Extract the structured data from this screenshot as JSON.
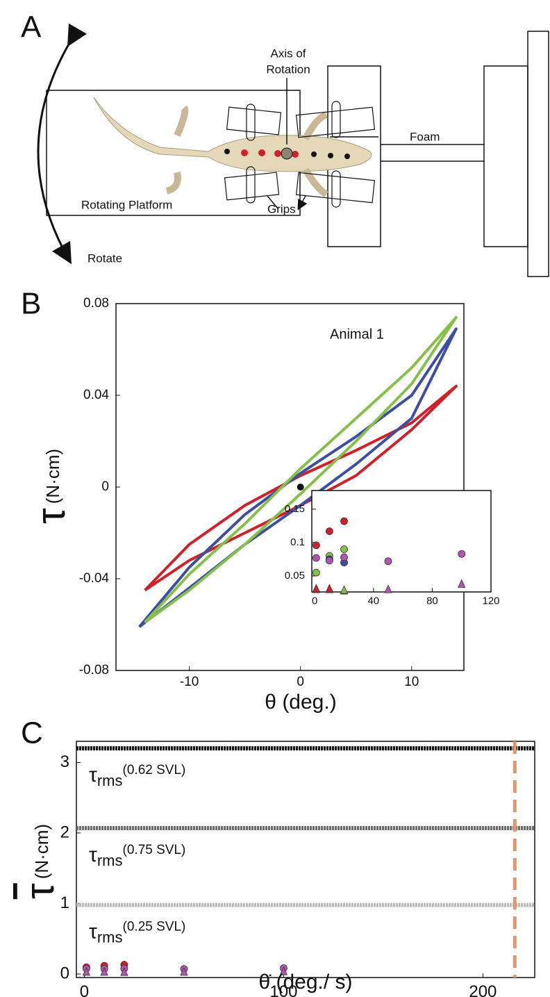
{
  "diagram": {
    "panel_label": "A",
    "labels": {
      "axis_line1": "Axis of",
      "axis_line2": "Rotation",
      "foam": "Foam",
      "platform": "Rotating Platform",
      "grips": "Grips",
      "rotate": "Rotate"
    }
  },
  "chart_data": [
    {
      "type": "line",
      "panel_label": "B",
      "annotation": "Animal 1",
      "x_label": "θ (deg.)",
      "y_label": "τ",
      "y_label_unit": "(N·cm)",
      "xlim": [
        -16.6,
        14.7
      ],
      "ylim": [
        -0.08,
        0.08
      ],
      "xticks": [
        -10,
        0,
        10
      ],
      "yticks": [
        0.08,
        0.04,
        0,
        -0.04,
        -0.08
      ],
      "center_point": {
        "x": 0,
        "y": 0
      },
      "series": [
        {
          "color": "#d0202a",
          "x": [
            -14,
            -10,
            -5,
            0,
            5,
            10,
            14,
            14,
            10,
            5,
            0,
            -5,
            -10,
            -14
          ],
          "values": [
            -0.045,
            -0.025,
            -0.008,
            0.005,
            0.016,
            0.028,
            0.044,
            0.044,
            0.025,
            0.005,
            -0.008,
            -0.02,
            -0.032,
            -0.045
          ]
        },
        {
          "color": "#3c4fa0",
          "x": [
            -14.5,
            -10,
            -5,
            0,
            5,
            10,
            14,
            14,
            10,
            5,
            0,
            -5,
            -10,
            -14.5
          ],
          "values": [
            -0.061,
            -0.035,
            -0.012,
            0.006,
            0.022,
            0.04,
            0.069,
            0.069,
            0.03,
            0.01,
            -0.008,
            -0.025,
            -0.044,
            -0.061
          ]
        },
        {
          "color": "#86c04a",
          "x": [
            -14,
            -10,
            -5,
            0,
            5,
            10,
            14,
            14,
            10,
            5,
            0,
            -5,
            -10,
            -14
          ],
          "values": [
            -0.059,
            -0.038,
            -0.016,
            0.008,
            0.03,
            0.052,
            0.074,
            0.074,
            0.045,
            0.02,
            -0.003,
            -0.025,
            -0.045,
            -0.059
          ]
        }
      ]
    },
    {
      "type": "scatter",
      "panel_label": "C",
      "x_label": "θ̇ (deg./ s)",
      "y_label": "τ",
      "y_label_unit": "(N·cm)",
      "xlim": [
        -4,
        226
      ],
      "ylim": [
        -0.05,
        3.3
      ],
      "xticks": [
        0,
        100,
        200
      ],
      "yticks": [
        0,
        1,
        2,
        3
      ],
      "reference_lines": [
        {
          "value": 3.2,
          "color": "#111111",
          "symbol": "τ",
          "sub": "rms",
          "note": "(0.62 SVL)"
        },
        {
          "value": 2.07,
          "color": "#6a6a6a",
          "symbol": "τ",
          "sub": "rms",
          "note": "(0.75 SVL)"
        },
        {
          "value": 0.98,
          "color": "#bdbdbd",
          "symbol": "τ",
          "sub": "rms",
          "note": "(0.25 SVL)"
        }
      ],
      "vline": {
        "value": 216,
        "color": "#e8956a"
      },
      "series": [
        {
          "color": "#d0202a",
          "marker": "circle",
          "x": [
            1,
            10,
            20
          ],
          "values": [
            0.096,
            0.117,
            0.132
          ]
        },
        {
          "color": "#b056b0",
          "marker": "circle",
          "x": [
            1,
            10,
            20,
            50,
            100
          ],
          "values": [
            0.077,
            0.073,
            0.078,
            0.072,
            0.083
          ]
        },
        {
          "color": "#b056b0",
          "marker": "triangle",
          "x": [
            1,
            10,
            20,
            50,
            100
          ],
          "values": [
            0.03,
            0.03,
            0.028,
            0.03,
            0.038
          ]
        }
      ]
    },
    {
      "type": "scatter",
      "xlim": [
        -2,
        120
      ],
      "ylim": [
        0.026,
        0.178
      ],
      "xticks": [
        0,
        40,
        80,
        120
      ],
      "yticks": [
        0.05,
        0.1,
        0.15
      ],
      "series": [
        {
          "color": "#d0202a",
          "marker": "circle",
          "x": [
            1,
            10,
            20
          ],
          "values": [
            0.096,
            0.117,
            0.132
          ]
        },
        {
          "color": "#86c04a",
          "marker": "circle",
          "x": [
            1,
            10,
            20
          ],
          "values": [
            0.055,
            0.08,
            0.09
          ]
        },
        {
          "color": "#3c4fa0",
          "marker": "circle",
          "x": [
            10,
            20
          ],
          "values": [
            0.075,
            0.07
          ]
        },
        {
          "color": "#b056b0",
          "marker": "circle",
          "x": [
            1,
            10,
            20,
            50,
            100
          ],
          "values": [
            0.077,
            0.073,
            0.078,
            0.072,
            0.083
          ]
        },
        {
          "color": "#b056b0",
          "marker": "triangle",
          "x": [
            1,
            10,
            20,
            50,
            100
          ],
          "values": [
            0.03,
            0.03,
            0.028,
            0.03,
            0.038
          ]
        },
        {
          "color": "#d0202a",
          "marker": "triangle",
          "x": [
            1,
            10
          ],
          "values": [
            0.031,
            0.031
          ]
        },
        {
          "color": "#86c04a",
          "marker": "triangle",
          "x": [
            20
          ],
          "values": [
            0.029
          ]
        }
      ]
    }
  ]
}
